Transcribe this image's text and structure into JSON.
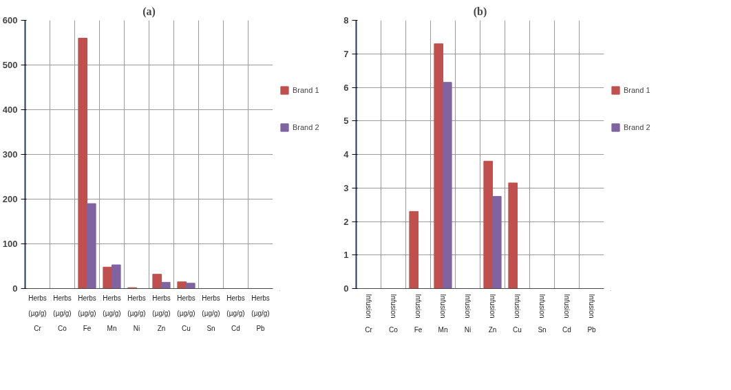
{
  "chart_data": [
    {
      "type": "bar",
      "title": "(a)",
      "categories": [
        "Herbs\n(µg/g)\nCr",
        "Herbs\n(µg/g)\nCo",
        "Herbs\n(µg/g)\nFe",
        "Herbs\n(µg/g)\nMn",
        "Herbs\n(µg/g)\nNi",
        "Herbs\n(µg/g)\nZn",
        "Herbs\n(µg/g)\nCu",
        "Herbs\n(µg/g)\nSn",
        "Herbs\n(µg/g)\nCd",
        "Herbs\n(µg/g)\nPb"
      ],
      "series": [
        {
          "name": "Brand 1",
          "color": "#c0504d",
          "values": [
            0,
            0,
            560,
            48,
            2,
            32,
            15,
            0,
            0,
            0
          ]
        },
        {
          "name": "Brand 2",
          "color": "#8064a2",
          "values": [
            0,
            0,
            190,
            53,
            0,
            14,
            12,
            0,
            0,
            0
          ]
        }
      ],
      "ylim": [
        0,
        600
      ],
      "yticks": [
        0,
        100,
        200,
        300,
        400,
        500,
        600
      ],
      "grid": true,
      "legend": "right"
    },
    {
      "type": "bar",
      "title": "(b)",
      "categories": [
        "Infusion\nCr",
        "Infusion\nCo",
        "Infusion\nFe",
        "Infusion\nMn",
        "Infusion\nNi",
        "Infusion\nZn",
        "Infusion\nCu",
        "Infusion\nSn",
        "Infusion\nCd",
        "Infusion\nPb"
      ],
      "series": [
        {
          "name": "Brand 1",
          "color": "#c0504d",
          "values": [
            0,
            0,
            2.3,
            7.3,
            0,
            3.8,
            3.15,
            0,
            0,
            0
          ]
        },
        {
          "name": "Brand 2",
          "color": "#8064a2",
          "values": [
            0,
            0,
            0,
            6.15,
            0,
            2.75,
            0,
            0,
            0,
            0
          ]
        }
      ],
      "ylim": [
        0,
        8
      ],
      "yticks": [
        0,
        1,
        2,
        3,
        4,
        5,
        6,
        7,
        8
      ],
      "grid": true,
      "legend": "right"
    }
  ]
}
